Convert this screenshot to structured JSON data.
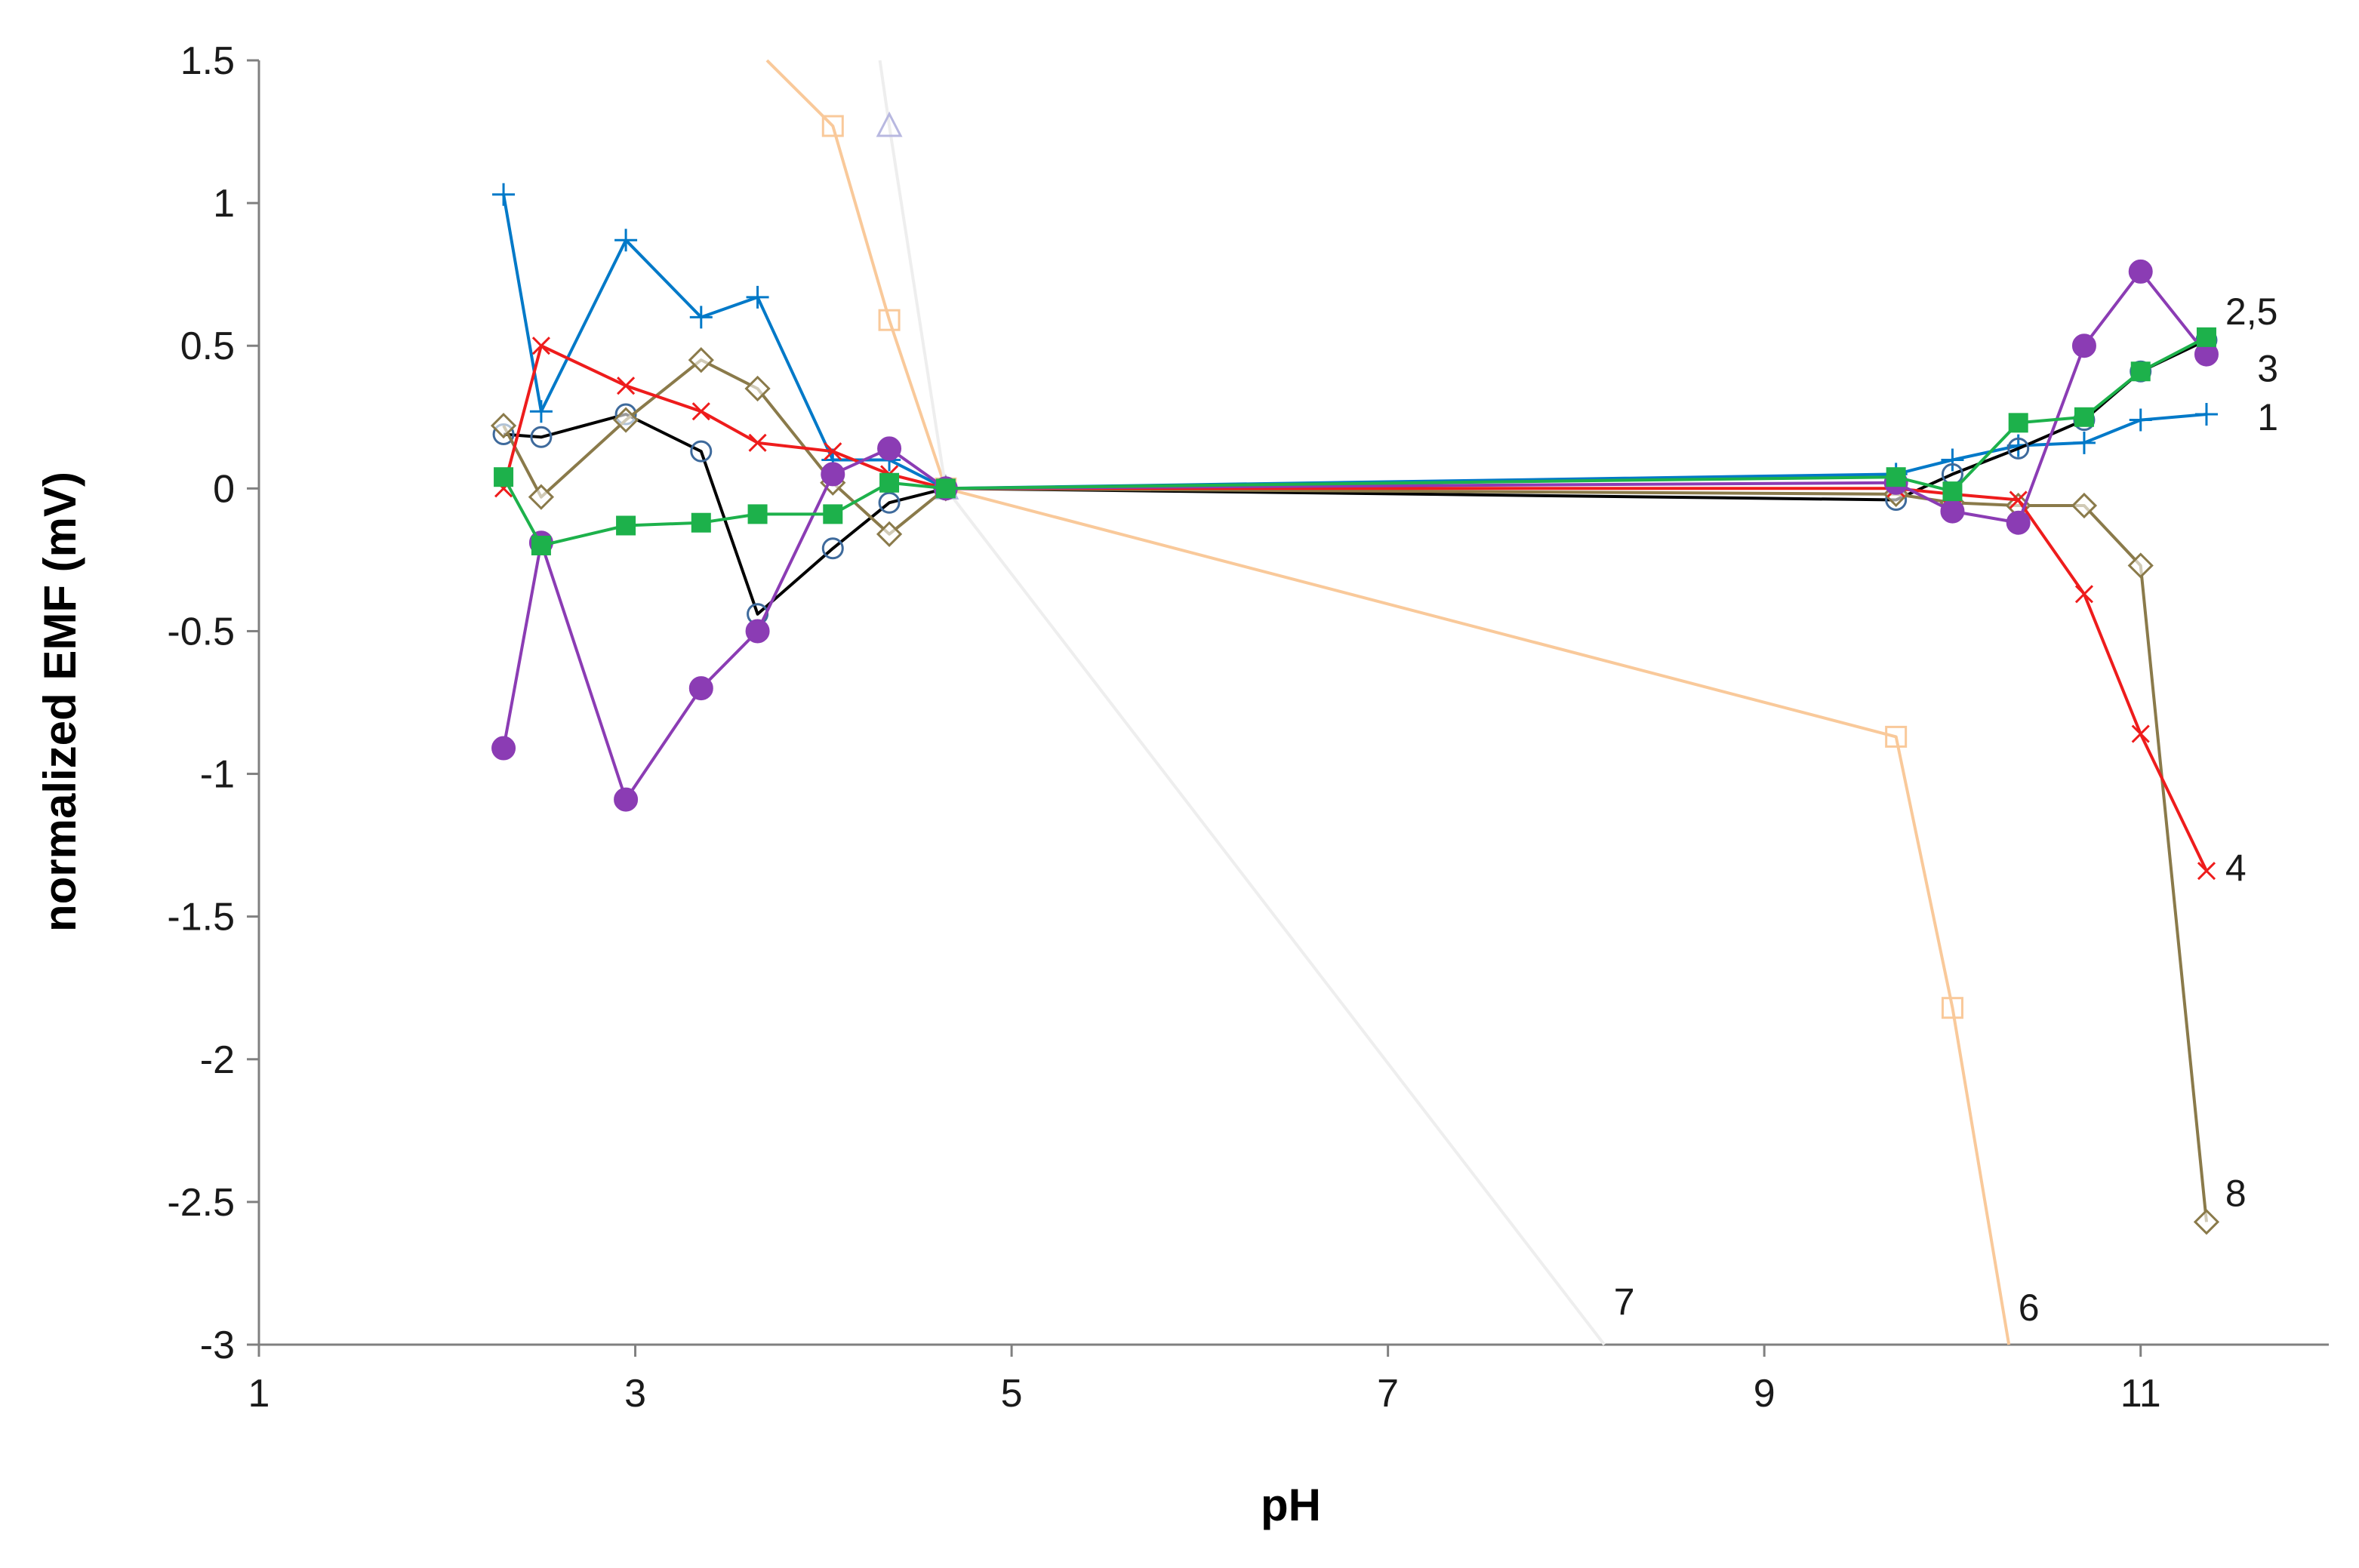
{
  "chart_data": {
    "type": "line",
    "title": "",
    "xlabel": "pH",
    "ylabel": "normalized EMF (mV)",
    "xlim": [
      1,
      12
    ],
    "ylim": [
      -3,
      1.5
    ],
    "xticks": [
      1,
      3,
      5,
      7,
      9,
      11
    ],
    "yticks": [
      1.5,
      1,
      0.5,
      0,
      -0.5,
      -1,
      -1.5,
      -2,
      -2.5,
      -3
    ],
    "ytick_labels": [
      "1.5",
      "1",
      "0.5",
      "0",
      "-0.5",
      "-1",
      "-1.5",
      "-2",
      "-2.5",
      "-3"
    ],
    "grid": false,
    "legend": "none",
    "series": [
      {
        "color": "#f9c99a",
        "marker": "square-open",
        "x": [
          3.7,
          4.05,
          4.35,
          4.65,
          9.7,
          10.0,
          10.3
        ],
        "y": [
          1.5,
          1.27,
          0.59,
          0.0,
          -0.87,
          -1.82,
          -3.0
        ],
        "markers": [
          false,
          true,
          true,
          true,
          true,
          true,
          false
        ]
      },
      {
        "color": "#eeeeee",
        "marker": "triangle-open",
        "x": [
          4.3,
          4.35,
          4.65,
          8.15
        ],
        "y": [
          1.5,
          1.27,
          0.0,
          -3.0
        ],
        "markers": [
          false,
          true,
          true,
          false
        ]
      },
      {
        "color": "#0079c8",
        "marker": "plus",
        "x": [
          2.3,
          2.5,
          2.95,
          3.35,
          3.65,
          4.05,
          4.35,
          4.65,
          9.7,
          10.0,
          10.35,
          10.7,
          11.0,
          11.35
        ],
        "y": [
          1.03,
          0.27,
          0.87,
          0.6,
          0.67,
          0.1,
          0.1,
          0.0,
          0.05,
          0.1,
          0.15,
          0.16,
          0.24,
          0.26
        ]
      },
      {
        "color": "#000000",
        "marker": "circle-open",
        "x": [
          2.3,
          2.5,
          2.95,
          3.35,
          3.65,
          4.05,
          4.35,
          4.65,
          9.7,
          10.0,
          10.35,
          10.7,
          11.0,
          11.35
        ],
        "y": [
          0.19,
          0.18,
          0.26,
          0.13,
          -0.44,
          -0.21,
          -0.05,
          0.0,
          -0.04,
          0.05,
          0.14,
          0.24,
          0.41,
          0.52
        ]
      },
      {
        "color": "#8a7a4a",
        "marker": "diamond-open",
        "x": [
          2.3,
          2.5,
          2.95,
          3.35,
          3.65,
          4.05,
          4.35,
          4.65,
          9.7,
          10.0,
          10.35,
          10.7,
          11.0,
          11.35
        ],
        "y": [
          0.22,
          -0.03,
          0.24,
          0.45,
          0.35,
          0.02,
          -0.16,
          0.0,
          -0.02,
          -0.05,
          -0.06,
          -0.06,
          -0.27,
          -2.57
        ]
      },
      {
        "color": "#ee1c1c",
        "marker": "x",
        "x": [
          2.3,
          2.5,
          2.95,
          3.35,
          3.65,
          4.05,
          4.35,
          4.65,
          9.7,
          10.0,
          10.35,
          10.7,
          11.0,
          11.35
        ],
        "y": [
          0.0,
          0.5,
          0.36,
          0.27,
          0.16,
          0.13,
          0.05,
          0.0,
          0.0,
          -0.02,
          -0.04,
          -0.37,
          -0.86,
          -1.34
        ]
      },
      {
        "color": "#8b3cb4",
        "marker": "circle-filled",
        "x": [
          2.3,
          2.5,
          2.95,
          3.35,
          3.65,
          4.05,
          4.35,
          4.65,
          9.7,
          10.0,
          10.35,
          10.7,
          11.0,
          11.35
        ],
        "y": [
          -0.91,
          -0.19,
          -1.09,
          -0.7,
          -0.5,
          0.05,
          0.14,
          0.0,
          0.02,
          -0.08,
          -0.12,
          0.5,
          0.76,
          0.47
        ]
      },
      {
        "color": "#1db14b",
        "marker": "square-filled",
        "x": [
          2.3,
          2.5,
          2.95,
          3.35,
          3.65,
          4.05,
          4.35,
          4.65,
          9.7,
          10.0,
          10.35,
          10.7,
          11.0,
          11.35
        ],
        "y": [
          0.04,
          -0.2,
          -0.13,
          -0.12,
          -0.09,
          -0.09,
          0.02,
          0.0,
          0.04,
          -0.01,
          0.23,
          0.25,
          0.41,
          0.53
        ]
      }
    ],
    "annotations": [
      {
        "text": "2,5",
        "x": 11.45,
        "y": 0.62
      },
      {
        "text": "3",
        "x": 11.62,
        "y": 0.42
      },
      {
        "text": "1",
        "x": 11.62,
        "y": 0.25
      },
      {
        "text": "4",
        "x": 11.45,
        "y": -1.33
      },
      {
        "text": "8",
        "x": 11.45,
        "y": -2.47
      },
      {
        "text": "7",
        "x": 8.2,
        "y": -2.85
      },
      {
        "text": "6",
        "x": 10.35,
        "y": -2.87
      }
    ]
  }
}
